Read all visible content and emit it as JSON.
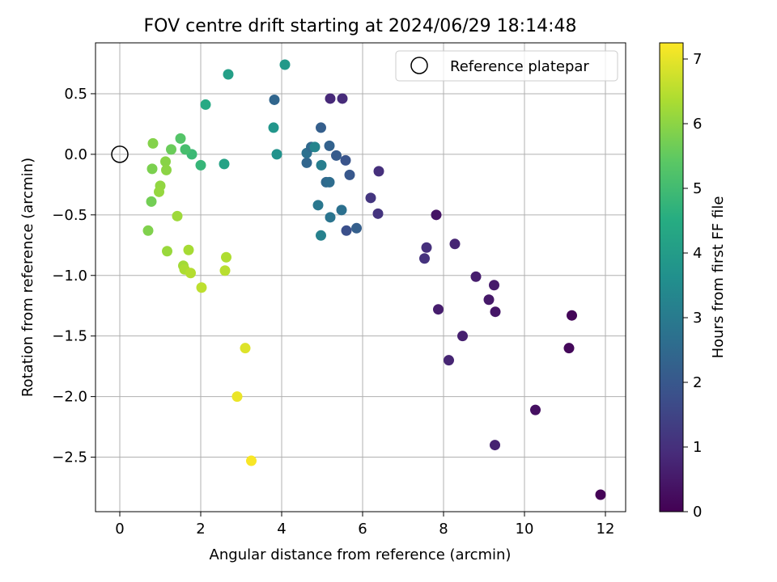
{
  "chart_data": {
    "type": "scatter",
    "title": "FOV centre drift starting at 2024/06/29 18:14:48",
    "xlabel": "Angular distance from reference (arcmin)",
    "ylabel": "Rotation from reference (arcmin)",
    "xlim": [
      -0.6,
      12.5
    ],
    "ylim": [
      -2.95,
      0.92
    ],
    "xticks": [
      0,
      2,
      4,
      6,
      8,
      10,
      12
    ],
    "xtick_labels": [
      "0",
      "2",
      "4",
      "6",
      "8",
      "10",
      "12"
    ],
    "yticks": [
      0.5,
      0.0,
      -0.5,
      -1.0,
      -1.5,
      -2.0,
      -2.5
    ],
    "ytick_labels": [
      "0.5",
      "0.0",
      "−0.5",
      "−1.0",
      "−1.5",
      "−2.0",
      "−2.5"
    ],
    "grid": true,
    "legend": {
      "position": "top-right",
      "entries": [
        "Reference platepar"
      ]
    },
    "reference_point": {
      "x": 0.0,
      "y": 0.0
    },
    "colormap": "viridis",
    "colorbar": {
      "label": "Hours from first FF file",
      "range": [
        0,
        7.25
      ],
      "ticks": [
        0,
        1,
        2,
        3,
        4,
        5,
        6,
        7
      ],
      "tick_labels": [
        "0",
        "1",
        "2",
        "3",
        "4",
        "5",
        "6",
        "7"
      ]
    },
    "points": [
      {
        "x": 11.88,
        "y": -2.81,
        "c": 0.05
      },
      {
        "x": 11.17,
        "y": -1.33,
        "c": 0.1
      },
      {
        "x": 11.1,
        "y": -1.6,
        "c": 0.15
      },
      {
        "x": 10.27,
        "y": -2.11,
        "c": 0.3
      },
      {
        "x": 9.27,
        "y": -2.4,
        "c": 0.7
      },
      {
        "x": 8.13,
        "y": -1.7,
        "c": 0.75
      },
      {
        "x": 8.47,
        "y": -1.5,
        "c": 0.65
      },
      {
        "x": 7.87,
        "y": -1.28,
        "c": 0.6
      },
      {
        "x": 9.28,
        "y": -1.3,
        "c": 0.45
      },
      {
        "x": 9.12,
        "y": -1.2,
        "c": 0.5
      },
      {
        "x": 9.25,
        "y": -1.08,
        "c": 0.55
      },
      {
        "x": 8.8,
        "y": -1.01,
        "c": 0.6
      },
      {
        "x": 8.28,
        "y": -0.74,
        "c": 0.75
      },
      {
        "x": 7.58,
        "y": -0.77,
        "c": 1.0
      },
      {
        "x": 7.53,
        "y": -0.86,
        "c": 1.05
      },
      {
        "x": 7.82,
        "y": -0.5,
        "c": 0.4
      },
      {
        "x": 6.38,
        "y": -0.49,
        "c": 1.1
      },
      {
        "x": 6.2,
        "y": -0.36,
        "c": 1.15
      },
      {
        "x": 6.4,
        "y": -0.14,
        "c": 1.0
      },
      {
        "x": 5.2,
        "y": 0.46,
        "c": 0.85
      },
      {
        "x": 5.5,
        "y": 0.46,
        "c": 0.9
      },
      {
        "x": 5.6,
        "y": -0.63,
        "c": 1.8
      },
      {
        "x": 5.85,
        "y": -0.61,
        "c": 2.2
      },
      {
        "x": 5.68,
        "y": -0.17,
        "c": 2.0
      },
      {
        "x": 5.58,
        "y": -0.05,
        "c": 1.9
      },
      {
        "x": 5.35,
        "y": -0.01,
        "c": 2.1
      },
      {
        "x": 5.18,
        "y": 0.07,
        "c": 2.3
      },
      {
        "x": 4.97,
        "y": 0.22,
        "c": 2.2
      },
      {
        "x": 5.1,
        "y": -0.23,
        "c": 2.5
      },
      {
        "x": 5.18,
        "y": -0.23,
        "c": 2.6
      },
      {
        "x": 5.48,
        "y": -0.46,
        "c": 2.7
      },
      {
        "x": 5.2,
        "y": -0.52,
        "c": 2.8
      },
      {
        "x": 4.9,
        "y": -0.42,
        "c": 2.9
      },
      {
        "x": 4.97,
        "y": -0.67,
        "c": 3.2
      },
      {
        "x": 4.98,
        "y": -0.09,
        "c": 3.1
      },
      {
        "x": 4.62,
        "y": -0.07,
        "c": 2.4
      },
      {
        "x": 4.62,
        "y": 0.01,
        "c": 2.7
      },
      {
        "x": 4.73,
        "y": 0.06,
        "c": 2.5
      },
      {
        "x": 4.82,
        "y": 0.06,
        "c": 3.3
      },
      {
        "x": 3.82,
        "y": 0.45,
        "c": 2.4
      },
      {
        "x": 3.8,
        "y": 0.22,
        "c": 3.8
      },
      {
        "x": 3.88,
        "y": -0.0,
        "c": 3.7
      },
      {
        "x": 4.08,
        "y": 0.74,
        "c": 3.9
      },
      {
        "x": 2.68,
        "y": 0.66,
        "c": 4.1
      },
      {
        "x": 2.12,
        "y": 0.41,
        "c": 4.4
      },
      {
        "x": 2.58,
        "y": -0.08,
        "c": 4.2
      },
      {
        "x": 2.0,
        "y": -0.09,
        "c": 4.8
      },
      {
        "x": 1.78,
        "y": 0.0,
        "c": 4.9
      },
      {
        "x": 1.62,
        "y": 0.04,
        "c": 5.1
      },
      {
        "x": 1.5,
        "y": 0.13,
        "c": 5.3
      },
      {
        "x": 1.27,
        "y": 0.04,
        "c": 5.6
      },
      {
        "x": 0.82,
        "y": 0.09,
        "c": 5.9
      },
      {
        "x": 0.8,
        "y": -0.12,
        "c": 5.8
      },
      {
        "x": 1.13,
        "y": -0.06,
        "c": 5.95
      },
      {
        "x": 1.15,
        "y": -0.13,
        "c": 6.0
      },
      {
        "x": 1.0,
        "y": -0.26,
        "c": 6.05
      },
      {
        "x": 0.97,
        "y": -0.31,
        "c": 6.1
      },
      {
        "x": 0.78,
        "y": -0.39,
        "c": 5.7
      },
      {
        "x": 1.42,
        "y": -0.51,
        "c": 6.2
      },
      {
        "x": 0.7,
        "y": -0.63,
        "c": 5.85
      },
      {
        "x": 1.17,
        "y": -0.8,
        "c": 6.15
      },
      {
        "x": 1.7,
        "y": -0.79,
        "c": 6.3
      },
      {
        "x": 2.63,
        "y": -0.85,
        "c": 6.4
      },
      {
        "x": 1.57,
        "y": -0.92,
        "c": 6.25
      },
      {
        "x": 1.6,
        "y": -0.95,
        "c": 6.35
      },
      {
        "x": 1.75,
        "y": -0.98,
        "c": 6.45
      },
      {
        "x": 2.6,
        "y": -0.96,
        "c": 6.5
      },
      {
        "x": 2.02,
        "y": -1.1,
        "c": 6.55
      },
      {
        "x": 3.1,
        "y": -1.6,
        "c": 6.9
      },
      {
        "x": 2.9,
        "y": -2.0,
        "c": 7.05
      },
      {
        "x": 3.25,
        "y": -2.53,
        "c": 7.2
      }
    ]
  }
}
